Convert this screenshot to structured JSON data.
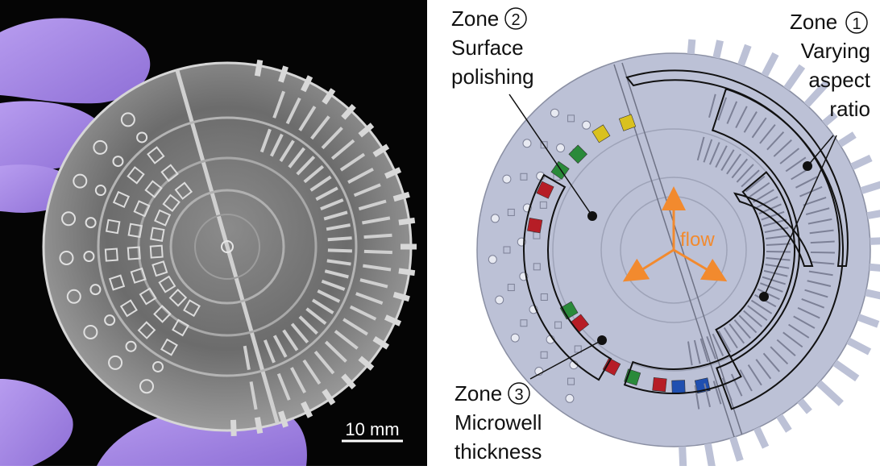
{
  "photo": {
    "scale_bar_label": "10 mm"
  },
  "diagram": {
    "zone1": {
      "title": "Zone",
      "number": "1",
      "line1": "Varying",
      "line2": "aspect",
      "line3": "ratio"
    },
    "zone2": {
      "title": "Zone",
      "number": "2",
      "line1": "Surface",
      "line2": "polishing"
    },
    "zone3": {
      "title": "Zone",
      "number": "3",
      "line1": "Microwell",
      "line2": "thickness"
    },
    "flow_label": "flow"
  },
  "colors": {
    "disc": "#bcc1d6",
    "accent_flow": "#f28a2e",
    "glove": "#a98de0",
    "well_red": "#b61d26",
    "well_green": "#2a8a3a",
    "well_yellow": "#d9c11e",
    "well_blue": "#1f4fb0"
  }
}
